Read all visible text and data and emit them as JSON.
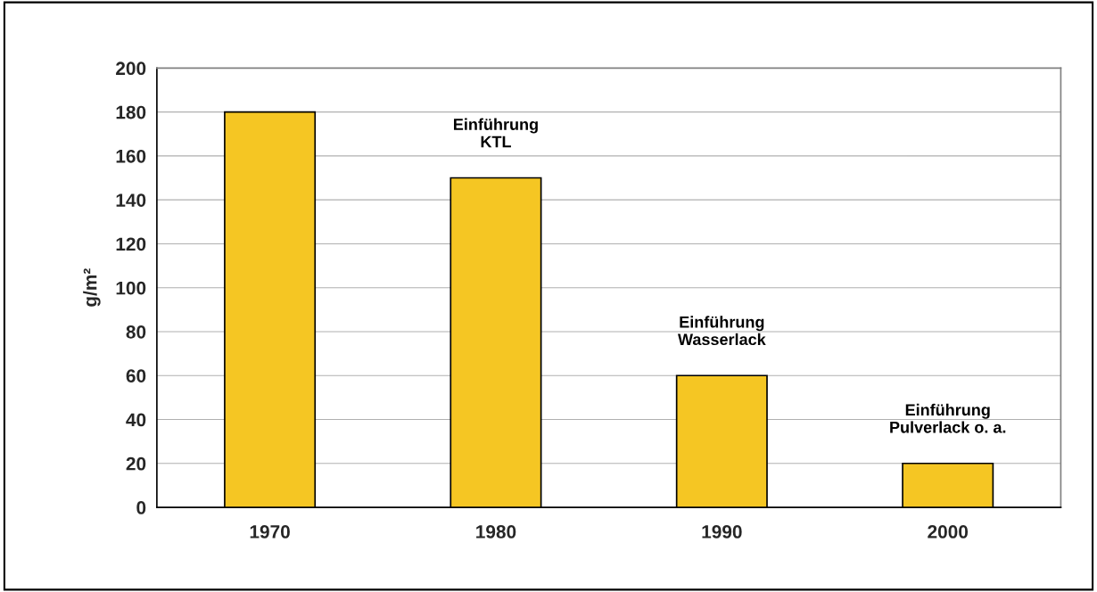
{
  "chart_data": {
    "type": "bar",
    "categories": [
      "1970",
      "1980",
      "1990",
      "2000"
    ],
    "values": [
      180,
      150,
      60,
      20
    ],
    "color": "#f5c623",
    "ylabel": "g/m²",
    "ylim": [
      0,
      200
    ],
    "yticks": [
      0,
      20,
      40,
      60,
      80,
      100,
      120,
      140,
      160,
      180,
      200
    ],
    "grid": "y",
    "annotations": [
      "Einführung\nKTL",
      "Einführung\nWasserlack",
      "Einführung\nPulverlack o. a."
    ]
  }
}
